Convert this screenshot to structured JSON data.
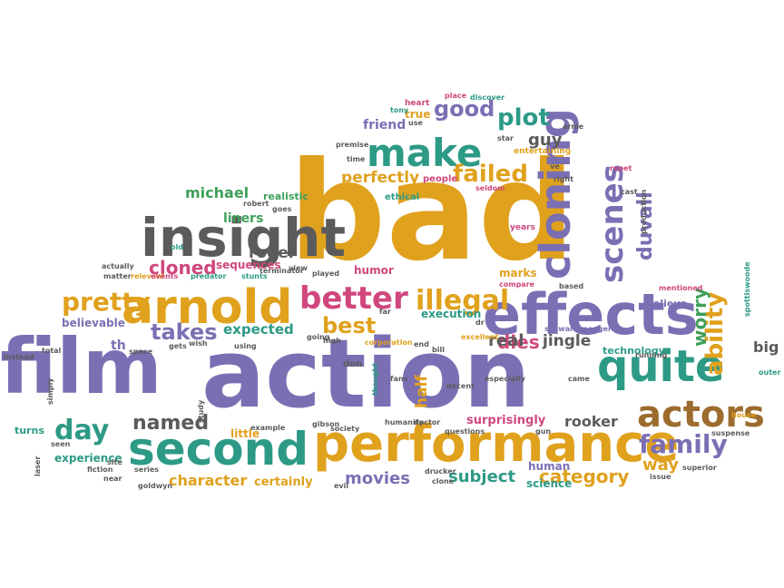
{
  "palette": {
    "purple": "#7b6fb4",
    "gold": "#e0a11d",
    "green": "#3fa05a",
    "teal": "#2d9a86",
    "gray": "#5b5b5b",
    "brown": "#9c6b2e",
    "magenta": "#d0477d",
    "olive": "#7e9a2c",
    "orange": "#d8761f",
    "blue": "#4a7dbc"
  },
  "words": [
    {
      "text": "action",
      "color": "purple"
    },
    {
      "text": "bad",
      "color": "gold"
    },
    {
      "text": "film",
      "color": "purple"
    },
    {
      "text": "performance",
      "color": "gold"
    },
    {
      "text": "effects",
      "color": "purple"
    },
    {
      "text": "second",
      "color": "teal"
    },
    {
      "text": "insight",
      "color": "gray"
    },
    {
      "text": "arnold",
      "color": "gold"
    },
    {
      "text": "quite",
      "color": "teal"
    },
    {
      "text": "make",
      "color": "teal"
    },
    {
      "text": "better",
      "color": "magenta"
    },
    {
      "text": "actors",
      "color": "brown"
    },
    {
      "text": "cloning",
      "color": "purple"
    },
    {
      "text": "illegal",
      "color": "gold"
    },
    {
      "text": "family",
      "color": "purple"
    },
    {
      "text": "day",
      "color": "teal"
    },
    {
      "text": "scenes",
      "color": "purple"
    },
    {
      "text": "pretty",
      "color": "gold"
    },
    {
      "text": "failed",
      "color": "gold"
    },
    {
      "text": "best",
      "color": "gold"
    },
    {
      "text": "plot",
      "color": "teal"
    },
    {
      "text": "good",
      "color": "purple"
    },
    {
      "text": "takes",
      "color": "purple"
    },
    {
      "text": "named",
      "color": "gray"
    },
    {
      "text": "cloned",
      "color": "magenta"
    },
    {
      "text": "ability",
      "color": "gold"
    },
    {
      "text": "movies",
      "color": "purple"
    },
    {
      "text": "subject",
      "color": "teal"
    },
    {
      "text": "dies",
      "color": "magenta"
    },
    {
      "text": "worry",
      "color": "green"
    },
    {
      "text": "duvall",
      "color": "purple"
    },
    {
      "text": "category",
      "color": "gold"
    },
    {
      "text": "character",
      "color": "gold"
    },
    {
      "text": "michael",
      "color": "green"
    },
    {
      "text": "real",
      "color": "gray"
    },
    {
      "text": "way",
      "color": "gold"
    },
    {
      "text": "guy",
      "color": "gray"
    },
    {
      "text": "perfectly",
      "color": "gold"
    },
    {
      "text": "expected",
      "color": "teal"
    },
    {
      "text": "roger",
      "color": "gray"
    },
    {
      "text": "rooker",
      "color": "gray"
    },
    {
      "text": "jingle",
      "color": "gray"
    },
    {
      "text": "half",
      "color": "gold"
    },
    {
      "text": "big",
      "color": "gray"
    },
    {
      "text": "th",
      "color": "purple"
    },
    {
      "text": "friend",
      "color": "purple"
    },
    {
      "text": "true",
      "color": "gold"
    },
    {
      "text": "experience",
      "color": "teal"
    },
    {
      "text": "turns",
      "color": "teal"
    },
    {
      "text": "surprisingly",
      "color": "magenta"
    },
    {
      "text": "certainly",
      "color": "gold"
    },
    {
      "text": "believable",
      "color": "purple"
    },
    {
      "text": "technology",
      "color": "teal"
    },
    {
      "text": "believe",
      "color": "purple"
    },
    {
      "text": "execution",
      "color": "teal"
    },
    {
      "text": "sequences",
      "color": "magenta"
    },
    {
      "text": "liners",
      "color": "green"
    },
    {
      "text": "little",
      "color": "gold"
    },
    {
      "text": "human",
      "color": "purple"
    },
    {
      "text": "science",
      "color": "teal"
    },
    {
      "text": "marks",
      "color": "gold"
    },
    {
      "text": "humor",
      "color": "magenta"
    },
    {
      "text": "realistic",
      "color": "green"
    },
    {
      "text": "people",
      "color": "magenta"
    },
    {
      "text": "ethical",
      "color": "teal"
    },
    {
      "text": "entertaining",
      "color": "gold"
    },
    {
      "text": "schwarzenegger",
      "color": "purple"
    },
    {
      "text": "spottiswoode",
      "color": "teal"
    },
    {
      "text": "heart",
      "color": "magenta"
    },
    {
      "text": "tony",
      "color": "teal"
    },
    {
      "text": "place",
      "color": "magenta"
    },
    {
      "text": "discover",
      "color": "teal"
    },
    {
      "text": "use",
      "color": "gray"
    },
    {
      "text": "arnie",
      "color": "gray"
    },
    {
      "text": "premise",
      "color": "gray"
    },
    {
      "text": "time",
      "color": "gray"
    },
    {
      "text": "star",
      "color": "gray"
    },
    {
      "text": "right",
      "color": "gray"
    },
    {
      "text": "ve",
      "color": "gray"
    },
    {
      "text": "repet",
      "color": "magenta"
    },
    {
      "text": "cast",
      "color": "gray"
    },
    {
      "text": "seldom",
      "color": "magenta"
    },
    {
      "text": "robert",
      "color": "gray"
    },
    {
      "text": "goes",
      "color": "gray"
    },
    {
      "text": "years",
      "color": "magenta"
    },
    {
      "text": "old",
      "color": "teal"
    },
    {
      "text": "production",
      "color": "gray"
    },
    {
      "text": "matter",
      "color": "gray"
    },
    {
      "text": "relevant",
      "color": "gold"
    },
    {
      "text": "events",
      "color": "magenta"
    },
    {
      "text": "predator",
      "color": "teal"
    },
    {
      "text": "stunts",
      "color": "teal"
    },
    {
      "text": "terminator",
      "color": "gray"
    },
    {
      "text": "view",
      "color": "gray"
    },
    {
      "text": "played",
      "color": "gray"
    },
    {
      "text": "compare",
      "color": "magenta"
    },
    {
      "text": "based",
      "color": "gray"
    },
    {
      "text": "mentioned",
      "color": "magenta"
    },
    {
      "text": "actually",
      "color": "gray"
    },
    {
      "text": "house",
      "color": "gold"
    },
    {
      "text": "outer",
      "color": "teal"
    },
    {
      "text": "running",
      "color": "gray"
    },
    {
      "text": "going",
      "color": "gray"
    },
    {
      "text": "high",
      "color": "gray"
    },
    {
      "text": "corporation",
      "color": "gold"
    },
    {
      "text": "far",
      "color": "gray"
    },
    {
      "text": "excellent",
      "color": "gold"
    },
    {
      "text": "dr",
      "color": "gray"
    },
    {
      "text": "end",
      "color": "gray"
    },
    {
      "text": "bill",
      "color": "gray"
    },
    {
      "text": "especially",
      "color": "gray"
    },
    {
      "text": "came",
      "color": "gray"
    },
    {
      "text": "instead",
      "color": "gray"
    },
    {
      "text": "total",
      "color": "gray"
    },
    {
      "text": "simply",
      "color": "gray"
    },
    {
      "text": "space",
      "color": "gray"
    },
    {
      "text": "gets",
      "color": "gray"
    },
    {
      "text": "wish",
      "color": "gray"
    },
    {
      "text": "using",
      "color": "gray"
    },
    {
      "text": "don",
      "color": "gray"
    },
    {
      "text": "thought",
      "color": "teal"
    },
    {
      "text": "seen",
      "color": "gray"
    },
    {
      "text": "laser",
      "color": "gray"
    },
    {
      "text": "site",
      "color": "gray"
    },
    {
      "text": "fiction",
      "color": "gray"
    },
    {
      "text": "series",
      "color": "gray"
    },
    {
      "text": "study",
      "color": "gray"
    },
    {
      "text": "example",
      "color": "gray"
    },
    {
      "text": "gibson",
      "color": "gray"
    },
    {
      "text": "society",
      "color": "gray"
    },
    {
      "text": "humanity",
      "color": "gray"
    },
    {
      "text": "doctor",
      "color": "gray"
    },
    {
      "text": "questions",
      "color": "gray"
    },
    {
      "text": "gun",
      "color": "gray"
    },
    {
      "text": "suspense",
      "color": "gray"
    },
    {
      "text": "near",
      "color": "gray"
    },
    {
      "text": "goldwyn",
      "color": "gray"
    },
    {
      "text": "evil",
      "color": "gray"
    },
    {
      "text": "drucker",
      "color": "gray"
    },
    {
      "text": "clone",
      "color": "gray"
    },
    {
      "text": "issue",
      "color": "gray"
    },
    {
      "text": "superior",
      "color": "gray"
    },
    {
      "text": "decent",
      "color": "gray"
    },
    {
      "text": "fans",
      "color": "gray"
    },
    {
      "text": "perfect",
      "color": "gray"
    }
  ]
}
